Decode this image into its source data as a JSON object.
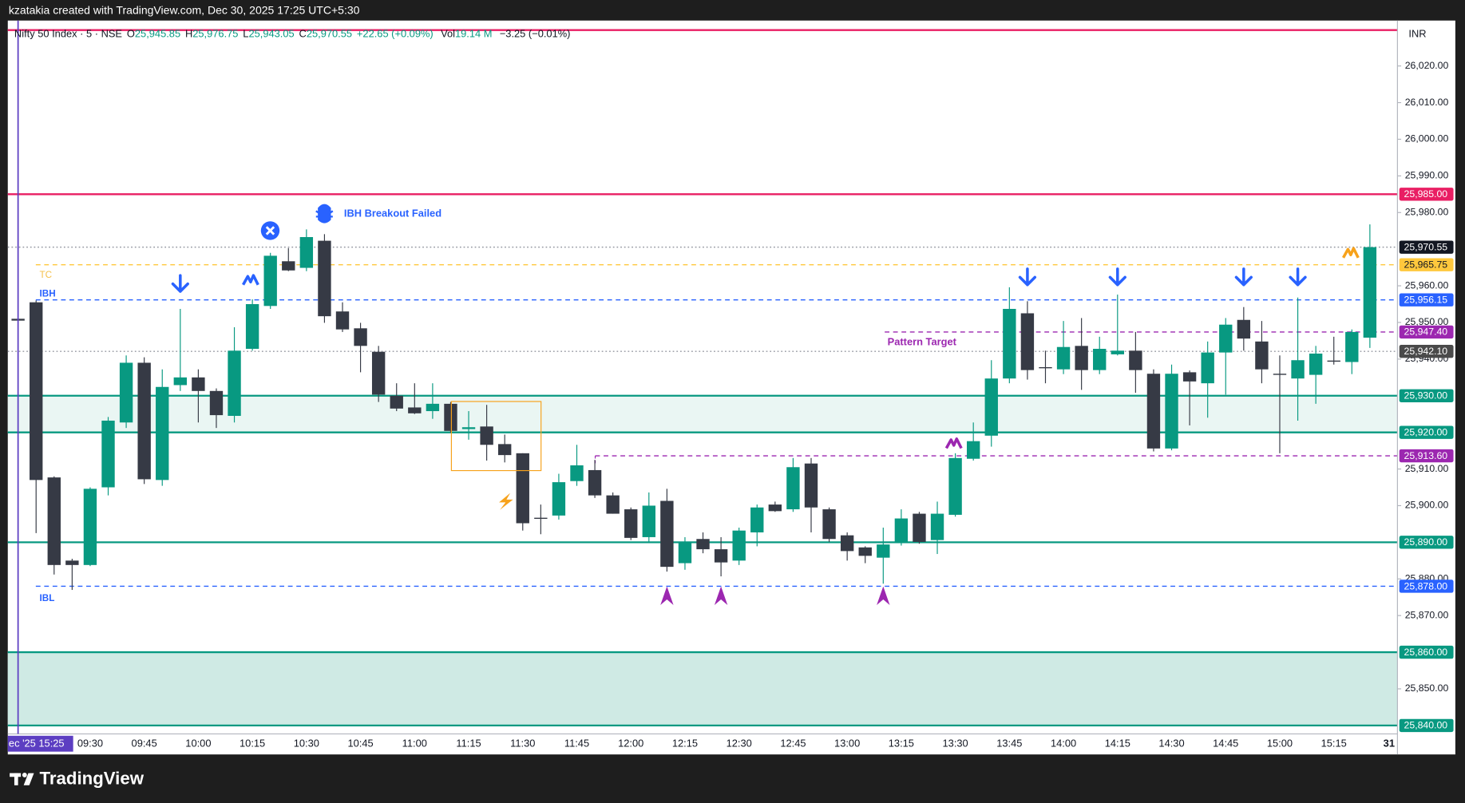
{
  "header": {
    "credit": "kzatakia created with TradingView.com, Dec 30, 2025 17:25 UTC+5:30"
  },
  "footer": {
    "brand": "TradingView"
  },
  "chart_data": {
    "type": "candlestick",
    "legend": {
      "symbol": "Nifty 50 Index · 5 · NSE",
      "o_label": "O",
      "open": "25,945.85",
      "h_label": "H",
      "high": "25,976.75",
      "l_label": "L",
      "low": "25,943.05",
      "c_label": "C",
      "close": "25,970.55",
      "change": "+22.65 (+0.09%)",
      "vol_label": "Vol",
      "volume": "19.14 M",
      "vol_change": "−3.25 (−0.01%)"
    },
    "currency": "INR",
    "up_color": "#089981",
    "down_color": "#363a45",
    "categories": [
      "ec '25 15:25",
      null,
      null,
      null,
      "09:30",
      null,
      null,
      "09:45",
      null,
      null,
      "10:00",
      null,
      null,
      "10:15",
      null,
      null,
      "10:30",
      null,
      null,
      "10:45",
      null,
      null,
      "11:00",
      null,
      null,
      "11:15",
      null,
      null,
      "11:30",
      null,
      null,
      "11:45",
      null,
      null,
      "12:00",
      null,
      null,
      "12:15",
      null,
      null,
      "12:30",
      null,
      null,
      "12:45",
      null,
      null,
      "13:00",
      null,
      null,
      "13:15",
      null,
      null,
      "13:30",
      null,
      null,
      "13:45",
      null,
      null,
      "14:00",
      null,
      null,
      "14:15",
      null,
      null,
      "14:30",
      null,
      null,
      "14:45",
      null,
      null,
      "15:00",
      null,
      null,
      "15:15",
      null,
      null
    ],
    "next_day_label": "31",
    "open": [
      25951,
      25955.5,
      25907.7,
      25885,
      25883.8,
      25905,
      25922.7,
      25939,
      25907,
      25932.9,
      25935,
      25931.3,
      25924.5,
      25942.8,
      25954.5,
      25966.7,
      25964.9,
      25972.3,
      25953,
      25948.4,
      25942,
      25930,
      25926.8,
      25925.8,
      25927.8,
      25920.9,
      25921.6,
      25916.8,
      25914.3,
      25896.7,
      25897.3,
      25906.7,
      25909.7,
      25902.8,
      25899,
      25891.4,
      25901.3,
      25884.3,
      25890.9,
      25888.1,
      25885,
      25892.7,
      25900.3,
      25899,
      25911.5,
      25899,
      25891.9,
      25888.6,
      25885.8,
      25890.1,
      25897.8,
      25890.6,
      25897.5,
      25912.8,
      25919.1,
      25934.7,
      25952.5,
      25937.8,
      25937.2,
      25943.6,
      25937,
      25941.3,
      25942.3,
      25936,
      25915.6,
      25936.4,
      25933.4,
      25941.8,
      25950.7,
      25944.8,
      25936,
      25934.7,
      25935.7,
      25939.6,
      25939.2,
      25945.85
    ],
    "high": [
      25951.5,
      25956,
      25908,
      25885.5,
      25905,
      25924.2,
      25941,
      25940.5,
      25937.2,
      25953.7,
      25937.2,
      25932,
      25948.7,
      25956.3,
      25969,
      25970.3,
      25975.4,
      25974.1,
      25955.5,
      25949.9,
      25943.6,
      25933.4,
      25933.4,
      25933.4,
      25928.3,
      25925.8,
      25927.5,
      25919.4,
      25914.3,
      25900.3,
      25908.7,
      25916.6,
      25912.5,
      25903.6,
      25899.5,
      25903.6,
      25904.6,
      25891.4,
      25892.7,
      25891.4,
      25894,
      25900.3,
      25901.1,
      25913,
      25913,
      25899.5,
      25892.7,
      25888.9,
      25894,
      25899,
      25898.3,
      25901.1,
      25914.3,
      25922.7,
      25939.7,
      25959.6,
      25955.8,
      25942.3,
      25950.4,
      25951.2,
      25946.1,
      25957.6,
      25947.4,
      25937.2,
      25938.5,
      25936.9,
      25944.8,
      25951.2,
      25954.2,
      25950.4,
      25941,
      25956.8,
      25943.6,
      25946.1,
      25948.1,
      25976.75
    ],
    "low": [
      25950.5,
      25892.5,
      25881.2,
      25877,
      25883.5,
      25902.8,
      25921.2,
      25905.9,
      25905.4,
      25931.3,
      25922.7,
      25921.2,
      25922.7,
      25942.3,
      25953.7,
      25964,
      25964,
      25949.9,
      25947.4,
      25936.4,
      25928.3,
      25925.8,
      25925,
      25923.7,
      25919.9,
      25918,
      25912.3,
      25911.8,
      25893.2,
      25892.2,
      25896.2,
      25905.4,
      25902.1,
      25897.8,
      25890.6,
      25890.1,
      25882,
      25882.5,
      25887,
      25880.7,
      25883.8,
      25888.9,
      25898.3,
      25898.3,
      25892.7,
      25890.1,
      25885,
      25884.3,
      25878.7,
      25889.1,
      25889.6,
      25886.8,
      25897,
      25912.3,
      25916.1,
      25933.4,
      25934.4,
      25933.4,
      25935.9,
      25931.6,
      25935.9,
      25941,
      25930.8,
      25914.8,
      25915.1,
      25921.9,
      25924,
      25930.3,
      25942.3,
      25933.4,
      25914.3,
      25923.2,
      25927.8,
      25938.5,
      25935.9,
      25943.05
    ],
    "close": [
      25950.5,
      25907,
      25883.8,
      25883.8,
      25904.6,
      25923.2,
      25939,
      25907.2,
      25932.4,
      25935,
      25931.3,
      25924.7,
      25942.3,
      25955,
      25968.2,
      25964.2,
      25973.3,
      25951.7,
      25948.1,
      25943.6,
      25930.3,
      25926.5,
      25925.2,
      25927.8,
      25920.4,
      25921.4,
      25916.6,
      25913.8,
      25895.2,
      25896.5,
      25906.4,
      25911,
      25902.8,
      25897.8,
      25891.2,
      25900,
      25883.3,
      25889.9,
      25888.1,
      25884.5,
      25893.2,
      25899.5,
      25898.5,
      25910.5,
      25899.5,
      25890.9,
      25887.6,
      25886.3,
      25889.4,
      25896.5,
      25890.1,
      25897.8,
      25913,
      25917.6,
      25934.7,
      25953.7,
      25937,
      25937.6,
      25943.3,
      25937,
      25942.8,
      25942.3,
      25937,
      25915.6,
      25936,
      25933.9,
      25941.8,
      25949.4,
      25945.6,
      25937.2,
      25935.8,
      25939.7,
      25941.5,
      25939.4,
      25947.4,
      25970.55
    ],
    "ylim": [
      25837.7,
      26032.4
    ],
    "yticks": [
      {
        "value": 26020,
        "label": "26,020.00"
      },
      {
        "value": 26010,
        "label": "26,010.00"
      },
      {
        "value": 26000,
        "label": "26,000.00"
      },
      {
        "value": 25990,
        "label": "25,990.00"
      },
      {
        "value": 25980,
        "label": "25,980.00"
      },
      {
        "value": 25960,
        "label": "25,960.00"
      },
      {
        "value": 25950,
        "label": "25,950.00"
      },
      {
        "value": 25940,
        "label": "25,940.00"
      },
      {
        "value": 25910,
        "label": "25,910.00"
      },
      {
        "value": 25900,
        "label": "25,900.00"
      },
      {
        "value": 25880,
        "label": "25,880.00"
      },
      {
        "value": 25870,
        "label": "25,870.00"
      },
      {
        "value": 25850,
        "label": "25,850.00"
      }
    ],
    "zones": [
      {
        "from": 25920,
        "to": 25930,
        "color": "#eaf6f3"
      },
      {
        "from": 25840,
        "to": 25860,
        "color": "#cfeae4"
      }
    ],
    "levels": [
      {
        "value": 26029.8,
        "color": "#e91e63",
        "line": "solid"
      },
      {
        "value": 25985,
        "label": "25,985.00",
        "color": "#e91e63",
        "line": "solid"
      },
      {
        "value": 25970.55,
        "label": "25,970.55",
        "color": "#131722",
        "line_color": "#9598a1",
        "line": "dotted"
      },
      {
        "value": 25965.75,
        "label": "25,965.75",
        "color": "#ffc83d",
        "text_color": "#131722",
        "line": "dashed"
      },
      {
        "value": 25956.15,
        "label": "25,956.15",
        "color": "#2962ff",
        "line": "dashed"
      },
      {
        "value": 25947.4,
        "label": "25,947.40",
        "color": "#9c27b0",
        "line": "dashed"
      },
      {
        "value": 25942.1,
        "label": "25,942.10",
        "color": "#4a4a4a",
        "line_color": "#9598a1",
        "line": "dotted"
      },
      {
        "value": 25930,
        "label": "25,930.00",
        "color": "#089981",
        "line": "solid"
      },
      {
        "value": 25920,
        "label": "25,920.00",
        "color": "#089981",
        "line": "solid"
      },
      {
        "value": 25913.6,
        "label": "25,913.60",
        "color": "#9c27b0",
        "line": "dashed"
      },
      {
        "value": 25890,
        "label": "25,890.00",
        "color": "#089981",
        "line": "solid"
      },
      {
        "value": 25878,
        "label": "25,878.00",
        "color": "#2962ff",
        "line": "dashed"
      },
      {
        "value": 25860,
        "label": "25,860.00",
        "color": "#089981",
        "line": "solid"
      },
      {
        "value": 25840,
        "label": "25,840.00",
        "color": "#089981",
        "line": "solid"
      }
    ],
    "annotations": {
      "tc": "TC",
      "ibh": "IBH",
      "ibl": "IBL",
      "pattern_target": "Pattern Target",
      "breakout_failed": "IBH Breakout Failed"
    }
  }
}
